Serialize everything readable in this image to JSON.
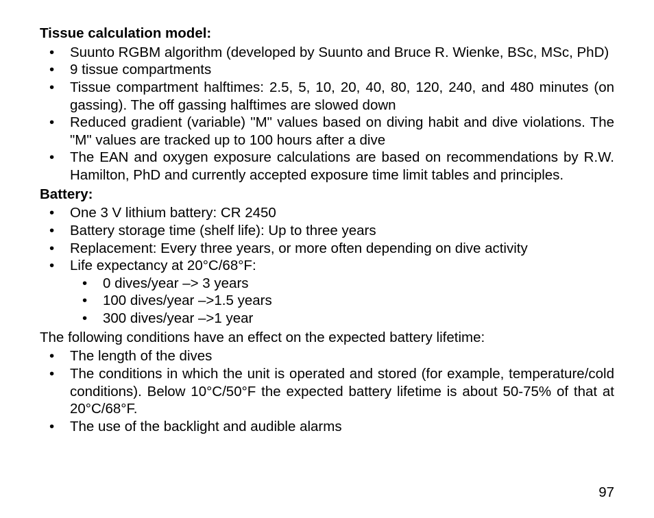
{
  "page_number": "97",
  "sections": [
    {
      "heading": "Tissue calculation model:",
      "type": "list",
      "items": [
        {
          "text": "Suunto RGBM algorithm (developed by Suunto and Bruce R. Wienke, BSc, MSc, PhD)"
        },
        {
          "text": "9 tissue compartments"
        },
        {
          "text": "Tissue compartment halftimes: 2.5, 5, 10, 20, 40, 80, 120, 240, and 480 minutes (on gassing). The off gassing halftimes are slowed down"
        },
        {
          "text": "Reduced gradient (variable) \"M\" values based on diving habit and dive violations. The \"M\" values are tracked up to 100 hours after a dive"
        },
        {
          "text": "The EAN and oxygen exposure calculations are based on recommendations by R.W. Hamilton, PhD and currently accepted exposure time limit tables and principles."
        }
      ]
    },
    {
      "heading": "Battery:",
      "type": "list",
      "items": [
        {
          "text": "One 3 V lithium battery: CR 2450"
        },
        {
          "text": "Battery storage time (shelf life): Up to three years"
        },
        {
          "text": "Replacement: Every three years, or more often depending on dive activity"
        },
        {
          "text": "Life expectancy at 20°C/68°F:",
          "sub": [
            "0 dives/year –> 3 years",
            "100 dives/year –>1.5 years",
            "300 dives/year –>1 year"
          ]
        }
      ]
    },
    {
      "type": "para",
      "text": "The following conditions have an effect on the expected battery lifetime:"
    },
    {
      "type": "list",
      "items": [
        {
          "text": "The length of the dives"
        },
        {
          "text": "The conditions in which the unit is operated and stored (for example, temperature/cold conditions). Below 10°C/50°F the expected battery lifetime is about 50-75% of that at 20°C/68°F."
        },
        {
          "text": "The use of the backlight and audible alarms"
        }
      ]
    }
  ]
}
